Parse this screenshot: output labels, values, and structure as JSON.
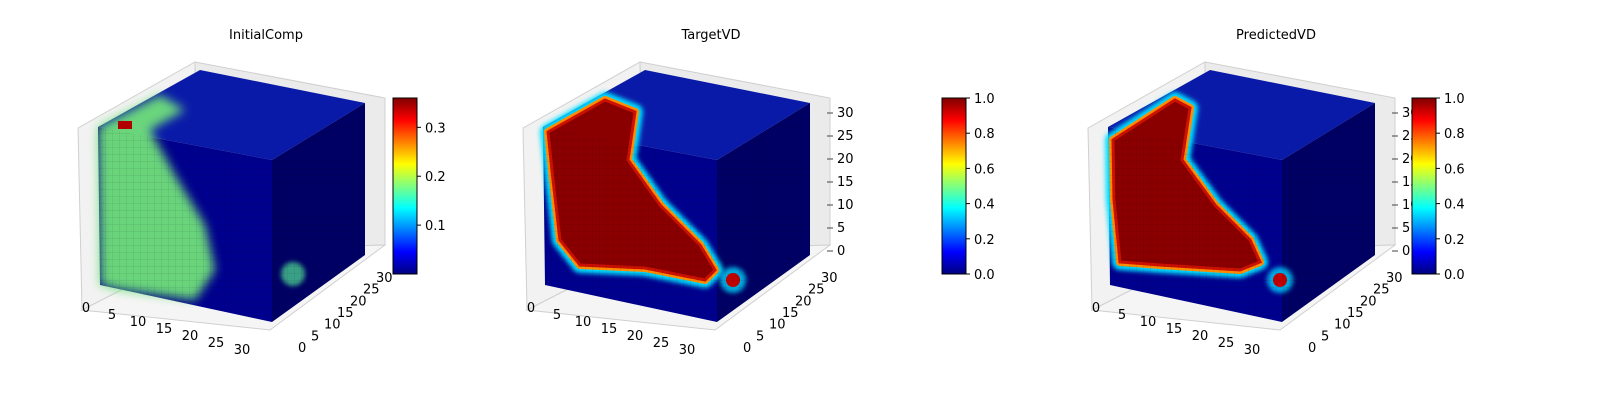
{
  "figure": {
    "panels": [
      "InitialComp",
      "TargetVD",
      "PredictedVD"
    ]
  },
  "chart_data": [
    {
      "type": "heatmap",
      "title": "InitialComp",
      "subtype": "3d-voxel-cube",
      "colormap": "jet",
      "grid": true,
      "x_ticks": [
        "0",
        "5",
        "10",
        "15",
        "20",
        "25",
        "30"
      ],
      "y_ticks": [
        "0",
        "5",
        "10",
        "15",
        "20",
        "25",
        "30"
      ],
      "z_ticks": [],
      "colorbar": {
        "range": [
          0.0,
          0.36
        ],
        "ticks": [
          "0.1",
          "0.2",
          "0.3"
        ]
      },
      "pattern": "low-concentration green region (~0.2) on left front face, small hot spot (~0.36) at top-left corner, faint blob on right face"
    },
    {
      "type": "heatmap",
      "title": "TargetVD",
      "subtype": "3d-voxel-cube",
      "colormap": "jet",
      "grid": true,
      "x_ticks": [
        "0",
        "5",
        "10",
        "15",
        "20",
        "25",
        "30"
      ],
      "y_ticks": [
        "0",
        "5",
        "10",
        "15",
        "20",
        "25",
        "30"
      ],
      "z_ticks": [
        "0",
        "5",
        "10",
        "15",
        "20",
        "25",
        "30"
      ],
      "colorbar": {
        "range": [
          0.0,
          1.0
        ],
        "ticks": [
          "0.0",
          "0.2",
          "0.4",
          "0.6",
          "0.8",
          "1.0"
        ]
      },
      "pattern": "saturated (1.0) region on left front face with sharp boundary, hot blob on right face"
    },
    {
      "type": "heatmap",
      "title": "PredictedVD",
      "subtype": "3d-voxel-cube",
      "colormap": "jet",
      "grid": true,
      "x_ticks": [
        "0",
        "5",
        "10",
        "15",
        "20",
        "25",
        "30"
      ],
      "y_ticks": [
        "0",
        "5",
        "10",
        "15",
        "20",
        "25",
        "30"
      ],
      "z_ticks": [
        "0",
        "5",
        "10",
        "15",
        "20",
        "25",
        "30"
      ],
      "colorbar": {
        "range": [
          0.0,
          1.0
        ],
        "ticks": [
          "0.0",
          "0.2",
          "0.4",
          "0.6",
          "0.8",
          "1.0"
        ]
      },
      "pattern": "saturated (1.0) region on left front face similar to target, hot blob on right face"
    }
  ]
}
